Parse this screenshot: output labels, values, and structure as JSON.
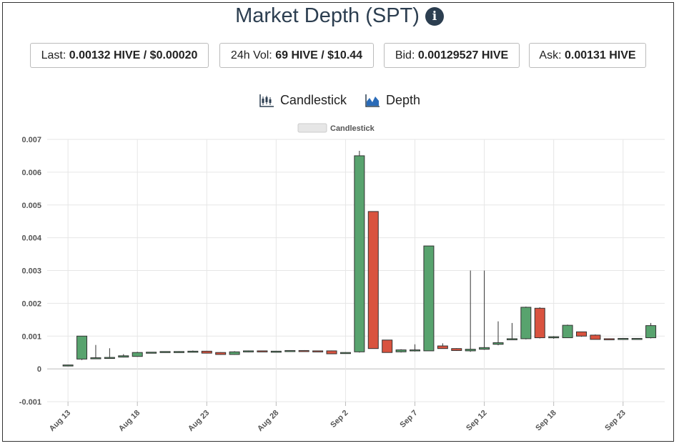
{
  "header": {
    "title": "Market Depth (SPT)",
    "info_icon": "info-icon"
  },
  "stats": [
    {
      "label": "Last:",
      "value": "0.00132 HIVE / $0.00020"
    },
    {
      "label": "24h Vol:",
      "value": "69 HIVE / $10.44"
    },
    {
      "label": "Bid:",
      "value": "0.00129527 HIVE"
    },
    {
      "label": "Ask:",
      "value": "0.00131 HIVE"
    }
  ],
  "tabs": [
    {
      "label": "Candlestick",
      "icon": "candlestick-icon"
    },
    {
      "label": "Depth",
      "icon": "depth-icon"
    }
  ],
  "colors": {
    "up": "#58a36e",
    "down": "#d9533f",
    "title": "#2c3e50",
    "grid": "#e6e6e6"
  },
  "chart_data": {
    "type": "candlestick",
    "legend": "Candlestick",
    "legend_position": "top-center",
    "grid": true,
    "ylim": [
      -0.001,
      0.007
    ],
    "yticks": [
      "-0.001",
      "0",
      "0.001",
      "0.002",
      "0.003",
      "0.004",
      "0.005",
      "0.006",
      "0.007"
    ],
    "xticks": [
      {
        "label": "Aug 13",
        "day": 0
      },
      {
        "label": "Aug 18",
        "day": 5
      },
      {
        "label": "Aug 23",
        "day": 10
      },
      {
        "label": "Aug 28",
        "day": 15
      },
      {
        "label": "Sep 2",
        "day": 20
      },
      {
        "label": "Sep 7",
        "day": 25
      },
      {
        "label": "Sep 12",
        "day": 30
      },
      {
        "label": "Sep 18",
        "day": 35
      },
      {
        "label": "Sep 23",
        "day": 40
      }
    ],
    "candles": [
      {
        "day": 0,
        "o": 0.0001,
        "h": 0.00012,
        "l": 0.0001,
        "c": 0.00012
      },
      {
        "day": 1,
        "o": 0.0003,
        "h": 0.001,
        "l": 0.00027,
        "c": 0.001
      },
      {
        "day": 2,
        "o": 0.00033,
        "h": 0.00073,
        "l": 0.00032,
        "c": 0.00034
      },
      {
        "day": 3,
        "o": 0.00034,
        "h": 0.00063,
        "l": 0.00033,
        "c": 0.00035
      },
      {
        "day": 4,
        "o": 0.00036,
        "h": 0.00045,
        "l": 0.00035,
        "c": 0.0004
      },
      {
        "day": 5,
        "o": 0.00038,
        "h": 0.00052,
        "l": 0.00037,
        "c": 0.0005
      },
      {
        "day": 6,
        "o": 0.0005,
        "h": 0.00051,
        "l": 0.00049,
        "c": 0.00051
      },
      {
        "day": 7,
        "o": 0.00052,
        "h": 0.00053,
        "l": 0.00051,
        "c": 0.00053
      },
      {
        "day": 8,
        "o": 0.00053,
        "h": 0.00054,
        "l": 0.00052,
        "c": 0.00053
      },
      {
        "day": 9,
        "o": 0.00053,
        "h": 0.00056,
        "l": 0.00052,
        "c": 0.00054
      },
      {
        "day": 10,
        "o": 0.00054,
        "h": 0.00055,
        "l": 0.00048,
        "c": 0.00048
      },
      {
        "day": 11,
        "o": 0.0005,
        "h": 0.00051,
        "l": 0.00043,
        "c": 0.00044
      },
      {
        "day": 12,
        "o": 0.00044,
        "h": 0.00054,
        "l": 0.00043,
        "c": 0.00052
      },
      {
        "day": 13,
        "o": 0.00052,
        "h": 0.00056,
        "l": 0.00051,
        "c": 0.00055
      },
      {
        "day": 14,
        "o": 0.00055,
        "h": 0.00055,
        "l": 0.00054,
        "c": 0.00054
      },
      {
        "day": 15,
        "o": 0.00054,
        "h": 0.00055,
        "l": 0.00053,
        "c": 0.00054
      },
      {
        "day": 16,
        "o": 0.00054,
        "h": 0.00057,
        "l": 0.00053,
        "c": 0.00056
      },
      {
        "day": 17,
        "o": 0.00056,
        "h": 0.00057,
        "l": 0.00055,
        "c": 0.00055
      },
      {
        "day": 18,
        "o": 0.00055,
        "h": 0.00055,
        "l": 0.00054,
        "c": 0.00054
      },
      {
        "day": 19,
        "o": 0.00055,
        "h": 0.00056,
        "l": 0.00045,
        "c": 0.00046
      },
      {
        "day": 20,
        "o": 0.0005,
        "h": 0.00051,
        "l": 0.00049,
        "c": 0.0005
      },
      {
        "day": 21,
        "o": 0.00052,
        "h": 0.00665,
        "l": 0.0005,
        "c": 0.0065
      },
      {
        "day": 22,
        "o": 0.0048,
        "h": 0.0048,
        "l": 0.00062,
        "c": 0.00062
      },
      {
        "day": 23,
        "o": 0.00088,
        "h": 0.00088,
        "l": 0.0005,
        "c": 0.0005
      },
      {
        "day": 24,
        "o": 0.00052,
        "h": 0.0006,
        "l": 0.0005,
        "c": 0.00058
      },
      {
        "day": 25,
        "o": 0.00055,
        "h": 0.00075,
        "l": 0.00053,
        "c": 0.00058
      },
      {
        "day": 26,
        "o": 0.00055,
        "h": 0.00375,
        "l": 0.00055,
        "c": 0.00375
      },
      {
        "day": 27,
        "o": 0.0007,
        "h": 0.00078,
        "l": 0.00062,
        "c": 0.00062
      },
      {
        "day": 28,
        "o": 0.00062,
        "h": 0.00063,
        "l": 0.00055,
        "c": 0.00056
      },
      {
        "day": 29,
        "o": 0.00055,
        "h": 0.003,
        "l": 0.00052,
        "c": 0.0006
      },
      {
        "day": 30,
        "o": 0.0006,
        "h": 0.003,
        "l": 0.00058,
        "c": 0.00065
      },
      {
        "day": 31,
        "o": 0.00075,
        "h": 0.00145,
        "l": 0.00072,
        "c": 0.0008
      },
      {
        "day": 32,
        "o": 0.0009,
        "h": 0.0014,
        "l": 0.00088,
        "c": 0.00092
      },
      {
        "day": 33,
        "o": 0.00092,
        "h": 0.0019,
        "l": 0.0009,
        "c": 0.00188
      },
      {
        "day": 34,
        "o": 0.00185,
        "h": 0.00188,
        "l": 0.00093,
        "c": 0.00095
      },
      {
        "day": 35,
        "o": 0.00095,
        "h": 0.001,
        "l": 0.00092,
        "c": 0.00098
      },
      {
        "day": 36,
        "o": 0.00095,
        "h": 0.00135,
        "l": 0.00094,
        "c": 0.00133
      },
      {
        "day": 37,
        "o": 0.00113,
        "h": 0.00113,
        "l": 0.00098,
        "c": 0.001
      },
      {
        "day": 38,
        "o": 0.00103,
        "h": 0.00105,
        "l": 0.0009,
        "c": 0.0009
      },
      {
        "day": 39,
        "o": 0.00092,
        "h": 0.00093,
        "l": 0.0009,
        "c": 0.00091
      },
      {
        "day": 40,
        "o": 0.00092,
        "h": 0.00094,
        "l": 0.00091,
        "c": 0.00093
      },
      {
        "day": 41,
        "o": 0.00093,
        "h": 0.00094,
        "l": 0.00092,
        "c": 0.00093
      },
      {
        "day": 42,
        "o": 0.00095,
        "h": 0.0014,
        "l": 0.00093,
        "c": 0.00132
      }
    ]
  }
}
